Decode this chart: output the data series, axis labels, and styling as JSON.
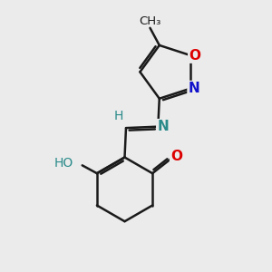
{
  "background_color": "#ebebeb",
  "bond_color": "#1a1a1a",
  "bond_width": 1.8,
  "figsize": [
    3.0,
    3.0
  ],
  "dpi": 100,
  "xlim": [
    0,
    10
  ],
  "ylim": [
    0,
    10
  ],
  "atoms": {
    "O_iso": {
      "color": "#dd0000",
      "fontsize": 11,
      "fontweight": "bold"
    },
    "N_iso": {
      "color": "#1111cc",
      "fontsize": 11,
      "fontweight": "bold"
    },
    "N_imine": {
      "color": "#2a8a8a",
      "fontsize": 11,
      "fontweight": "bold"
    },
    "H_imine": {
      "color": "#2a8a8a",
      "fontsize": 10,
      "fontweight": "normal"
    },
    "O_ketone": {
      "color": "#dd0000",
      "fontsize": 11,
      "fontweight": "bold"
    },
    "H_enol": {
      "color": "#2a8a8a",
      "fontsize": 10,
      "fontweight": "normal"
    },
    "O_enol": {
      "color": "#2a8a8a",
      "fontsize": 11,
      "fontweight": "bold"
    }
  }
}
